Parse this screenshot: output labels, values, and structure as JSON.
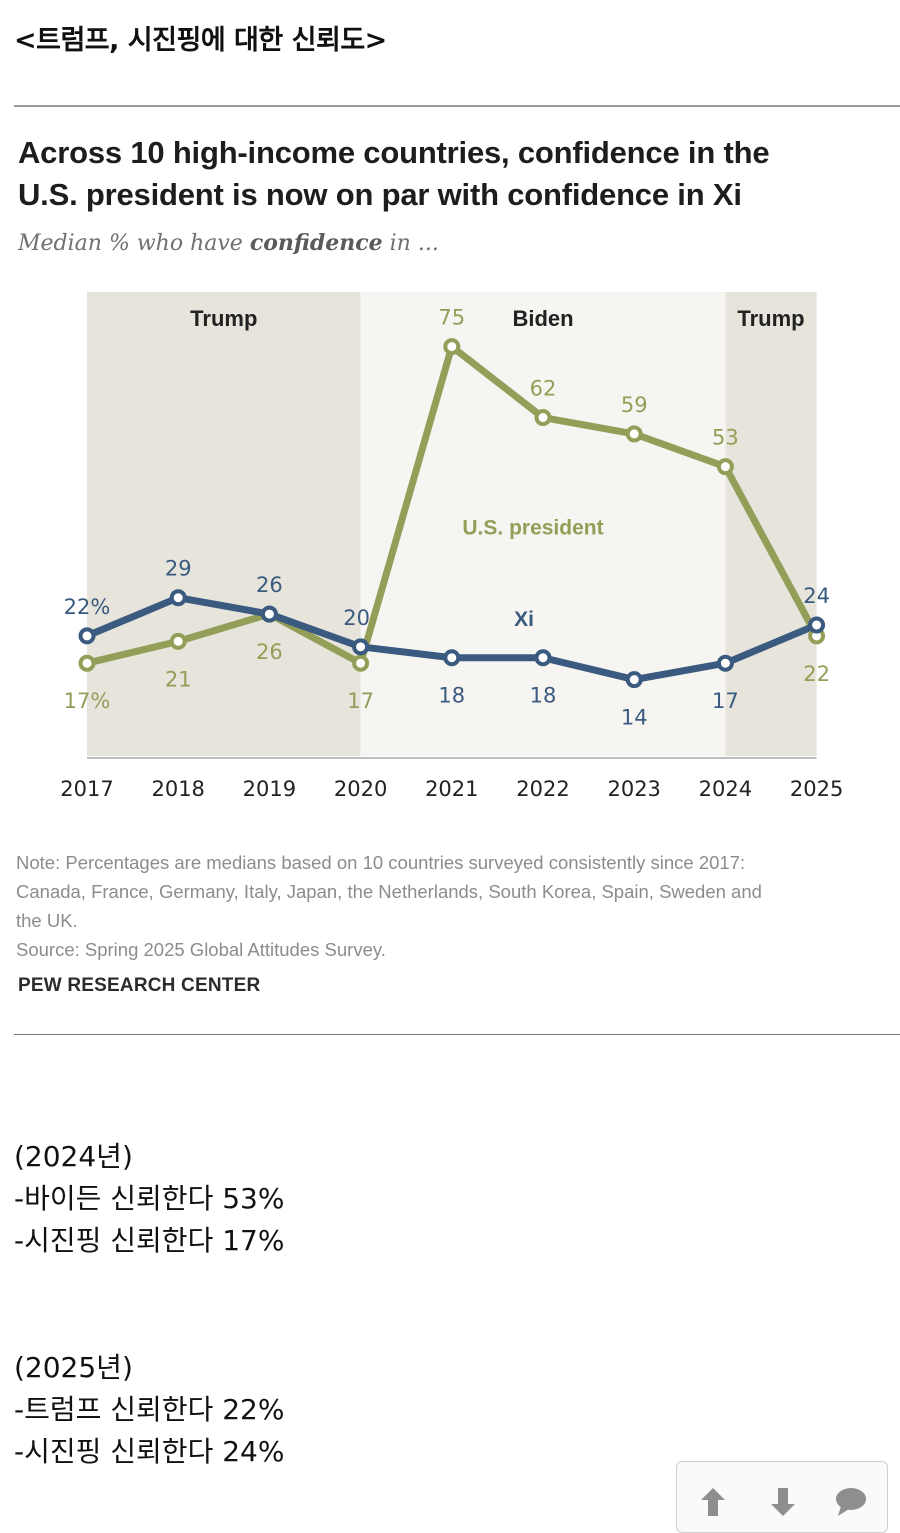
{
  "post": {
    "title": "<트럼프, 시진핑에 대한 신뢰도>"
  },
  "figure": {
    "title_line1": "Across 10 high-income countries, confidence in the",
    "title_line2": "U.S. president is now on par with confidence in Xi",
    "subtitle_prefix": "Median % who have ",
    "subtitle_bold": "confidence",
    "subtitle_suffix": " in ...",
    "note_line1": "Note: Percentages are medians based on 10 countries surveyed consistently since 2017:",
    "note_line2": "Canada, France, Germany, Italy, Japan, the Netherlands, South Korea, Spain, Sweden and",
    "note_line3": "the UK.",
    "source": "Source: Spring 2025 Global Attitudes Survey.",
    "brand": "PEW RESEARCH CENTER"
  },
  "chart_data": {
    "type": "line",
    "x": [
      "2017",
      "2018",
      "2019",
      "2020",
      "2021",
      "2022",
      "2023",
      "2024",
      "2025"
    ],
    "ylim": [
      0,
      85
    ],
    "grid": false,
    "legend": "inline labels",
    "series": [
      {
        "name": "U.S. president",
        "color": "#939e58",
        "values": [
          17,
          21,
          26,
          17,
          75,
          62,
          59,
          53,
          22
        ],
        "labels": [
          "17%",
          "21",
          "26",
          "17",
          "75",
          "62",
          "59",
          "53",
          "22"
        ]
      },
      {
        "name": "Xi",
        "color": "#3a5a7f",
        "values": [
          22,
          29,
          26,
          20,
          18,
          18,
          14,
          17,
          24
        ],
        "labels": [
          "22%",
          "29",
          "26",
          "20",
          "18",
          "18",
          "14",
          "17",
          "24"
        ]
      }
    ],
    "eras": [
      {
        "label": "Trump",
        "from": "2017",
        "to": "2020",
        "color": "#e7e4dc"
      },
      {
        "label": "Biden",
        "from": "2020",
        "to": "2024",
        "color": "#f6f5f2"
      },
      {
        "label": "Trump",
        "from": "2024",
        "to": "2025",
        "color": "#e7e4dc"
      }
    ]
  },
  "summary": {
    "y2024": {
      "heading": "(2024년)",
      "line1": "-바이든 신뢰한다 53%",
      "line2": "-시진핑 신뢰한다 17%"
    },
    "y2025": {
      "heading": "(2025년)",
      "line1": "-트럼프 신뢰한다 22%",
      "line2": "-시진핑 신뢰한다 24%"
    }
  },
  "icons": {
    "upvote": "arrow-up-icon",
    "downvote": "arrow-down-icon",
    "comment": "speech-bubble-icon"
  }
}
